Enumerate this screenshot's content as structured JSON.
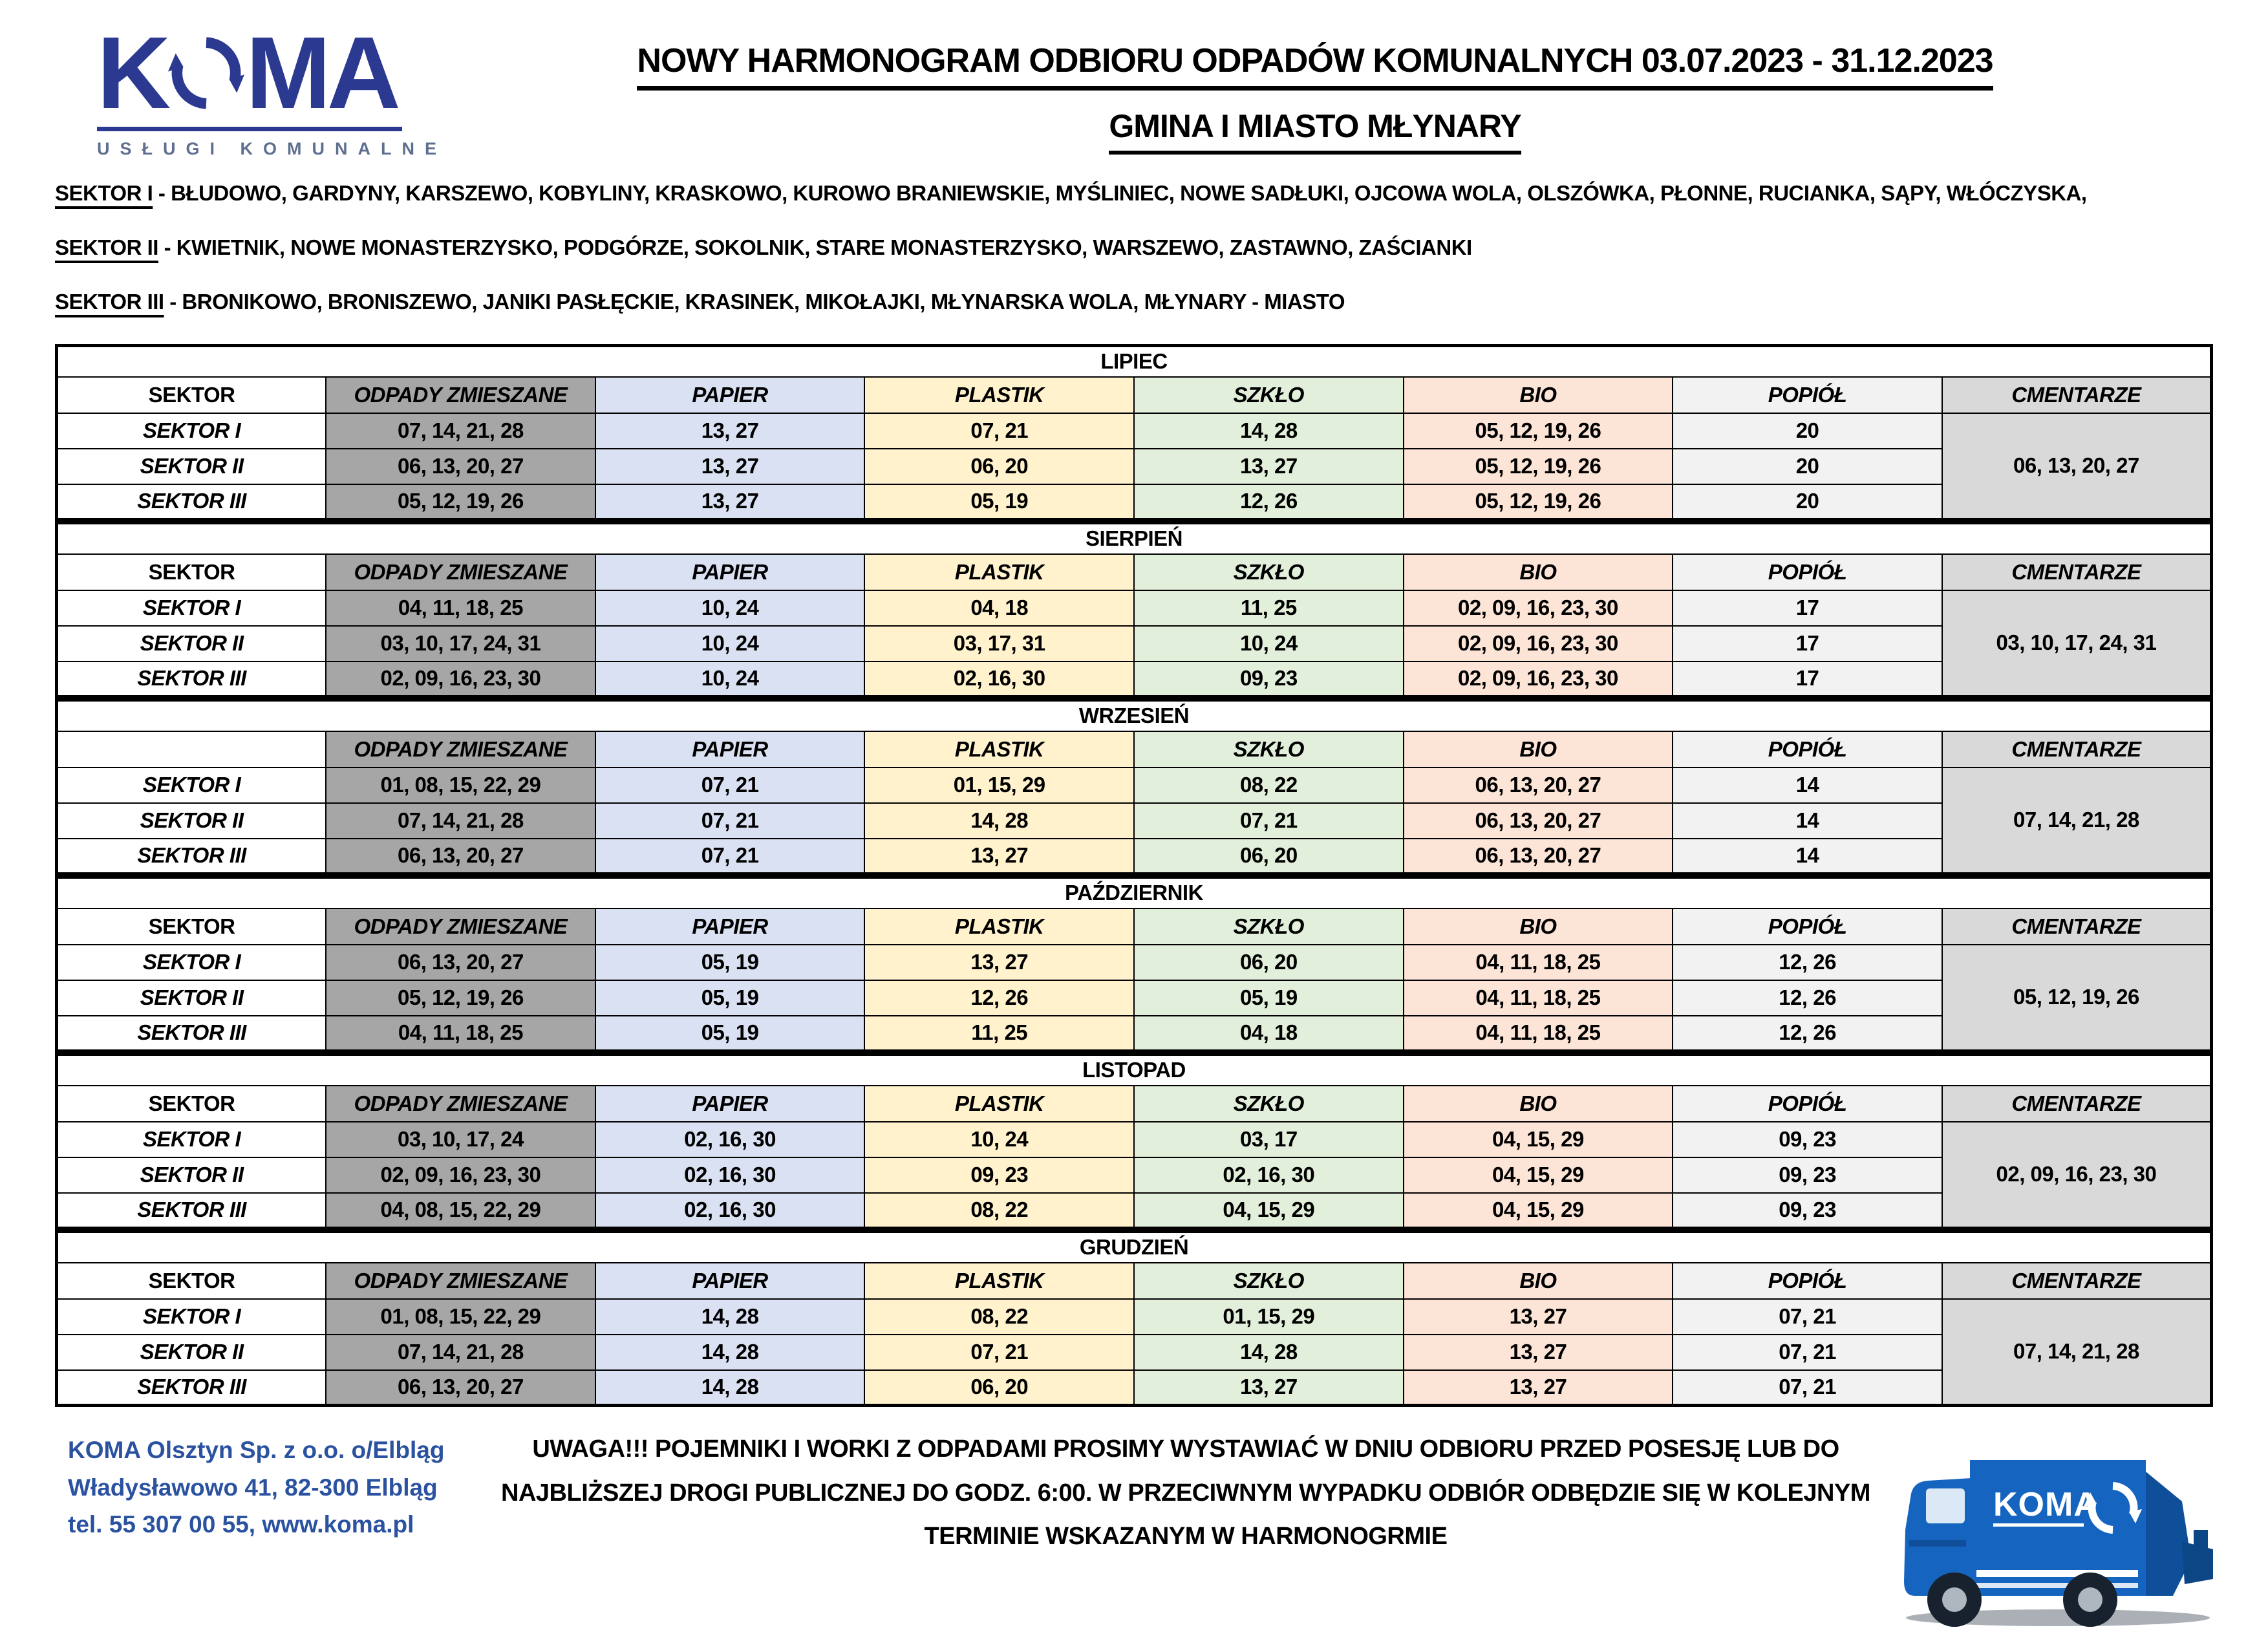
{
  "logo": {
    "brand": "KOMA",
    "tagline": "USŁUGI KOMUNALNE"
  },
  "title": {
    "line1": "NOWY HARMONOGRAM ODBIORU ODPADÓW KOMUNALNYCH 03.07.2023 - 31.12.2023",
    "line2": "GMINA I MIASTO MŁYNARY"
  },
  "sectors": [
    {
      "label": "SEKTOR I",
      "desc": " - BŁUDOWO, GARDYNY, KARSZEWO, KOBYLINY, KRASKOWO, KUROWO BRANIEWSKIE, MYŚLINIEC, NOWE SADŁUKI, OJCOWA WOLA, OLSZÓWKA, PŁONNE, RUCIANKA, SĄPY, WŁÓCZYSKA,"
    },
    {
      "label": "SEKTOR II",
      "desc": " - KWIETNIK,  NOWE MONASTERZYSKO, PODGÓRZE, SOKOLNIK, STARE MONASTERZYSKO, WARSZEWO, ZASTAWNO, ZAŚCIANKI"
    },
    {
      "label": "SEKTOR III",
      "desc": " - BRONIKOWO, BRONISZEWO, JANIKI PASŁĘCKIE, KRASINEK, MIKOŁAJKI, MŁYNARSKA WOLA, MŁYNARY - MIASTO"
    }
  ],
  "schedule": {
    "columns": [
      {
        "key": "sektor",
        "label": "SEKTOR",
        "color": "#ffffff"
      },
      {
        "key": "zmieszane",
        "label": "ODPADY ZMIESZANE",
        "color": "#a6a6a6"
      },
      {
        "key": "papier",
        "label": "PAPIER",
        "color": "#d9e1f2"
      },
      {
        "key": "plastik",
        "label": "PLASTIK",
        "color": "#fff2cc"
      },
      {
        "key": "szklo",
        "label": "SZKŁO",
        "color": "#e2efda"
      },
      {
        "key": "bio",
        "label": "BIO",
        "color": "#fce4d6"
      },
      {
        "key": "popiol",
        "label": "POPIÓŁ",
        "color": "#f2f2f2"
      },
      {
        "key": "cmentarze",
        "label": "CMENTARZE",
        "color": "#d9d9d9"
      }
    ],
    "months": [
      {
        "name": "LIPIEC",
        "first_header": "SEKTOR",
        "cmentarze": "06, 13, 20, 27",
        "rows": [
          [
            "SEKTOR I",
            "07, 14, 21, 28",
            "13, 27",
            "07, 21",
            "14, 28",
            "05, 12, 19, 26",
            "20"
          ],
          [
            "SEKTOR II",
            "06, 13, 20, 27",
            "13, 27",
            "06, 20",
            "13, 27",
            "05, 12, 19, 26",
            "20"
          ],
          [
            "SEKTOR III",
            "05, 12, 19, 26",
            "13, 27",
            "05, 19",
            "12, 26",
            "05, 12, 19, 26",
            "20"
          ]
        ]
      },
      {
        "name": "SIERPIEŃ",
        "first_header": "SEKTOR",
        "cmentarze": "03, 10, 17, 24, 31",
        "rows": [
          [
            "SEKTOR I",
            "04, 11, 18, 25",
            "10, 24",
            "04, 18",
            "11, 25",
            "02, 09, 16, 23, 30",
            "17"
          ],
          [
            "SEKTOR II",
            "03, 10, 17, 24, 31",
            "10, 24",
            "03, 17, 31",
            "10, 24",
            "02, 09, 16, 23, 30",
            "17"
          ],
          [
            "SEKTOR III",
            "02, 09, 16, 23, 30",
            "10, 24",
            "02, 16, 30",
            "09, 23",
            "02, 09, 16, 23, 30",
            "17"
          ]
        ]
      },
      {
        "name": "WRZESIEŃ",
        "first_header": "",
        "cmentarze": "07, 14, 21, 28",
        "rows": [
          [
            "SEKTOR I",
            "01, 08, 15, 22, 29",
            "07, 21",
            "01, 15, 29",
            "08, 22",
            "06, 13, 20, 27",
            "14"
          ],
          [
            "SEKTOR II",
            "07, 14, 21, 28",
            "07, 21",
            "14, 28",
            "07, 21",
            "06, 13, 20, 27",
            "14"
          ],
          [
            "SEKTOR III",
            "06, 13, 20, 27",
            "07, 21",
            "13, 27",
            "06, 20",
            "06, 13, 20, 27",
            "14"
          ]
        ]
      },
      {
        "name": "PAŹDZIERNIK",
        "first_header": "SEKTOR",
        "cmentarze": "05, 12, 19, 26",
        "rows": [
          [
            "SEKTOR I",
            "06, 13, 20, 27",
            "05, 19",
            "13, 27",
            "06, 20",
            "04, 11, 18, 25",
            "12, 26"
          ],
          [
            "SEKTOR II",
            "05, 12, 19, 26",
            "05, 19",
            "12, 26",
            "05, 19",
            "04, 11, 18, 25",
            "12, 26"
          ],
          [
            "SEKTOR III",
            "04, 11, 18, 25",
            "05, 19",
            "11, 25",
            "04, 18",
            "04, 11, 18, 25",
            "12, 26"
          ]
        ]
      },
      {
        "name": "LISTOPAD",
        "first_header": "SEKTOR",
        "cmentarze": "02, 09, 16, 23, 30",
        "rows": [
          [
            "SEKTOR I",
            "03, 10, 17, 24",
            "02, 16, 30",
            "10, 24",
            "03, 17",
            "04, 15, 29",
            "09, 23"
          ],
          [
            "SEKTOR II",
            "02, 09, 16, 23, 30",
            "02, 16, 30",
            "09, 23",
            "02, 16, 30",
            "04, 15, 29",
            "09, 23"
          ],
          [
            "SEKTOR III",
            "04, 08, 15, 22, 29",
            "02, 16, 30",
            "08, 22",
            "04, 15, 29",
            "04, 15, 29",
            "09, 23"
          ]
        ]
      },
      {
        "name": "GRUDZIEŃ",
        "first_header": "SEKTOR",
        "cmentarze": "07, 14, 21, 28",
        "rows": [
          [
            "SEKTOR I",
            "01, 08, 15, 22, 29",
            "14, 28",
            "08, 22",
            "01, 15, 29",
            "13, 27",
            "07, 21"
          ],
          [
            "SEKTOR II",
            "07, 14, 21, 28",
            "14, 28",
            "07, 21",
            "14, 28",
            "13, 27",
            "07, 21"
          ],
          [
            "SEKTOR III",
            "06, 13, 20, 27",
            "14, 28",
            "06, 20",
            "13, 27",
            "13, 27",
            "07, 21"
          ]
        ]
      }
    ]
  },
  "footer": {
    "contact_lines": [
      "KOMA Olsztyn Sp. z o.o. o/Elbląg",
      "Władysławowo 41, 82-300 Elbląg",
      "tel. 55 307 00 55, www.koma.pl"
    ],
    "warning_lines": [
      "UWAGA!!! POJEMNIKI I WORKI Z ODPADAMI PROSIMY WYSTAWIAĆ W DNIU ODBIORU PRZED POSESJĘ LUB DO",
      "NAJBLIŻSZEJ DROGI PUBLICZNEJ DO GODZ. 6:00. W PRZECIWNYM WYPADKU ODBIÓR ODBĘDZIE SIĘ W KOLEJNYM",
      "TERMINIE WSKAZANYM W HARMONOGRMIE"
    ]
  },
  "colors": {
    "logo_blue": "#2b3990",
    "footer_blue": "#2a52a0",
    "truck_blue": "#1565c0",
    "truck_blue_dark": "#0f4f9a"
  }
}
